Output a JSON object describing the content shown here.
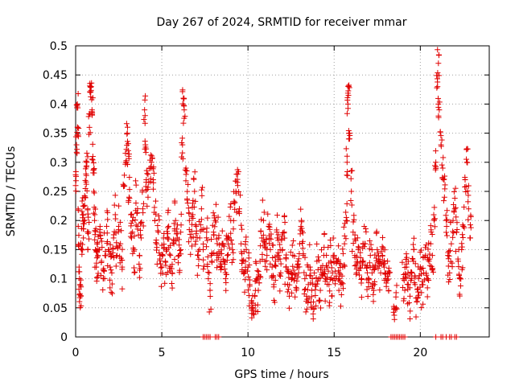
{
  "chart_data": {
    "type": "scatter",
    "title": "Day 267 of 2024, SRMTID for receiver mmar",
    "xlabel": "GPS time / hours",
    "ylabel": "SRMTID / TECUs",
    "xlim": [
      0,
      24
    ],
    "ylim": [
      0,
      0.5
    ],
    "xticks": [
      0,
      5,
      10,
      15,
      20
    ],
    "yticks": [
      0,
      0.05,
      0.1,
      0.15,
      0.2,
      0.25,
      0.3,
      0.35,
      0.4,
      0.45,
      0.5
    ],
    "xtick_labels": [
      "0",
      "5",
      "10",
      "15",
      "20"
    ],
    "ytick_labels": [
      "0",
      "0.05",
      "0.1",
      "0.15",
      "0.2",
      "0.25",
      "0.3",
      "0.35",
      "0.4",
      "0.45",
      "0.5"
    ],
    "grid": true,
    "marker": "+",
    "color": "#e00000",
    "series": [
      {
        "name": "SRMTID",
        "points": [
          [
            0.0,
            0.26
          ],
          [
            0.05,
            0.33
          ],
          [
            0.1,
            0.4
          ],
          [
            0.12,
            0.36
          ],
          [
            0.15,
            0.19
          ],
          [
            0.2,
            0.12
          ],
          [
            0.25,
            0.09
          ],
          [
            0.3,
            0.07
          ],
          [
            0.35,
            0.15
          ],
          [
            0.4,
            0.21
          ],
          [
            0.45,
            0.17
          ],
          [
            0.5,
            0.2
          ],
          [
            0.55,
            0.24
          ],
          [
            0.6,
            0.28
          ],
          [
            0.65,
            0.3
          ],
          [
            0.7,
            0.22
          ],
          [
            0.75,
            0.18
          ],
          [
            0.8,
            0.36
          ],
          [
            0.85,
            0.42
          ],
          [
            0.9,
            0.43
          ],
          [
            0.95,
            0.39
          ],
          [
            1.0,
            0.31
          ],
          [
            1.05,
            0.25
          ],
          [
            1.1,
            0.2
          ],
          [
            1.15,
            0.15
          ],
          [
            1.2,
            0.12
          ],
          [
            1.25,
            0.16
          ],
          [
            1.3,
            0.14
          ],
          [
            1.4,
            0.18
          ],
          [
            1.5,
            0.13
          ],
          [
            1.6,
            0.1
          ],
          [
            1.7,
            0.14
          ],
          [
            1.8,
            0.19
          ],
          [
            1.9,
            0.15
          ],
          [
            2.0,
            0.12
          ],
          [
            2.1,
            0.11
          ],
          [
            2.2,
            0.17
          ],
          [
            2.3,
            0.21
          ],
          [
            2.4,
            0.14
          ],
          [
            2.5,
            0.19
          ],
          [
            2.6,
            0.16
          ],
          [
            2.7,
            0.12
          ],
          [
            2.8,
            0.26
          ],
          [
            2.9,
            0.3
          ],
          [
            3.0,
            0.35
          ],
          [
            3.05,
            0.32
          ],
          [
            3.1,
            0.24
          ],
          [
            3.2,
            0.21
          ],
          [
            3.3,
            0.18
          ],
          [
            3.4,
            0.15
          ],
          [
            3.5,
            0.23
          ],
          [
            3.6,
            0.19
          ],
          [
            3.7,
            0.14
          ],
          [
            3.8,
            0.17
          ],
          [
            3.9,
            0.22
          ],
          [
            4.0,
            0.39
          ],
          [
            4.05,
            0.33
          ],
          [
            4.1,
            0.27
          ],
          [
            4.2,
            0.24
          ],
          [
            4.3,
            0.29
          ],
          [
            4.4,
            0.3
          ],
          [
            4.5,
            0.27
          ],
          [
            4.6,
            0.2
          ],
          [
            4.7,
            0.16
          ],
          [
            4.8,
            0.18
          ],
          [
            4.9,
            0.14
          ],
          [
            5.0,
            0.12
          ],
          [
            5.1,
            0.17
          ],
          [
            5.2,
            0.13
          ],
          [
            5.3,
            0.15
          ],
          [
            5.4,
            0.19
          ],
          [
            5.5,
            0.14
          ],
          [
            5.6,
            0.11
          ],
          [
            5.7,
            0.16
          ],
          [
            5.8,
            0.2
          ],
          [
            5.9,
            0.17
          ],
          [
            6.0,
            0.14
          ],
          [
            6.1,
            0.18
          ],
          [
            6.2,
            0.33
          ],
          [
            6.25,
            0.41
          ],
          [
            6.3,
            0.39
          ],
          [
            6.4,
            0.29
          ],
          [
            6.5,
            0.23
          ],
          [
            6.6,
            0.2
          ],
          [
            6.7,
            0.17
          ],
          [
            6.8,
            0.21
          ],
          [
            6.9,
            0.25
          ],
          [
            7.0,
            0.19
          ],
          [
            7.1,
            0.14
          ],
          [
            7.2,
            0.17
          ],
          [
            7.3,
            0.22
          ],
          [
            7.4,
            0.15
          ],
          [
            7.6,
            0.18
          ],
          [
            7.7,
            0.1
          ],
          [
            7.8,
            0.08
          ],
          [
            7.9,
            0.13
          ],
          [
            8.0,
            0.18
          ],
          [
            8.1,
            0.2
          ],
          [
            8.2,
            0.14
          ],
          [
            8.3,
            0.17
          ],
          [
            8.4,
            0.12
          ],
          [
            8.5,
            0.16
          ],
          [
            8.6,
            0.13
          ],
          [
            8.7,
            0.1
          ],
          [
            8.8,
            0.14
          ],
          [
            8.9,
            0.17
          ],
          [
            9.0,
            0.2
          ],
          [
            9.1,
            0.15
          ],
          [
            9.2,
            0.23
          ],
          [
            9.3,
            0.25
          ],
          [
            9.4,
            0.28
          ],
          [
            9.5,
            0.22
          ],
          [
            9.6,
            0.16
          ],
          [
            9.7,
            0.13
          ],
          [
            9.8,
            0.11
          ],
          [
            9.9,
            0.15
          ],
          [
            10.0,
            0.12
          ],
          [
            10.1,
            0.09
          ],
          [
            10.2,
            0.06
          ],
          [
            10.3,
            0.04
          ],
          [
            10.4,
            0.07
          ],
          [
            10.5,
            0.1
          ],
          [
            10.6,
            0.08
          ],
          [
            10.7,
            0.13
          ],
          [
            10.8,
            0.17
          ],
          [
            10.9,
            0.2
          ],
          [
            11.0,
            0.16
          ],
          [
            11.1,
            0.14
          ],
          [
            11.2,
            0.19
          ],
          [
            11.3,
            0.15
          ],
          [
            11.4,
            0.12
          ],
          [
            11.5,
            0.09
          ],
          [
            11.6,
            0.13
          ],
          [
            11.7,
            0.17
          ],
          [
            11.8,
            0.14
          ],
          [
            11.9,
            0.11
          ],
          [
            12.0,
            0.15
          ],
          [
            12.1,
            0.18
          ],
          [
            12.2,
            0.12
          ],
          [
            12.3,
            0.09
          ],
          [
            12.4,
            0.07
          ],
          [
            12.5,
            0.11
          ],
          [
            12.6,
            0.14
          ],
          [
            12.7,
            0.1
          ],
          [
            12.8,
            0.08
          ],
          [
            12.9,
            0.12
          ],
          [
            13.0,
            0.16
          ],
          [
            13.1,
            0.2
          ],
          [
            13.2,
            0.14
          ],
          [
            13.3,
            0.1
          ],
          [
            13.4,
            0.07
          ],
          [
            13.5,
            0.09
          ],
          [
            13.6,
            0.12
          ],
          [
            13.7,
            0.08
          ],
          [
            13.8,
            0.06
          ],
          [
            13.9,
            0.09
          ],
          [
            14.0,
            0.13
          ],
          [
            14.1,
            0.1
          ],
          [
            14.2,
            0.08
          ],
          [
            14.3,
            0.11
          ],
          [
            14.4,
            0.14
          ],
          [
            14.5,
            0.1
          ],
          [
            14.6,
            0.12
          ],
          [
            14.7,
            0.09
          ],
          [
            14.8,
            0.13
          ],
          [
            14.9,
            0.11
          ],
          [
            15.0,
            0.14
          ],
          [
            15.1,
            0.1
          ],
          [
            15.2,
            0.13
          ],
          [
            15.3,
            0.11
          ],
          [
            15.4,
            0.09
          ],
          [
            15.5,
            0.12
          ],
          [
            15.6,
            0.16
          ],
          [
            15.7,
            0.2
          ],
          [
            15.75,
            0.3
          ],
          [
            15.8,
            0.4
          ],
          [
            15.85,
            0.43
          ],
          [
            15.9,
            0.35
          ],
          [
            16.0,
            0.25
          ],
          [
            16.1,
            0.18
          ],
          [
            16.2,
            0.14
          ],
          [
            16.3,
            0.11
          ],
          [
            16.4,
            0.15
          ],
          [
            16.5,
            0.12
          ],
          [
            16.6,
            0.1
          ],
          [
            16.7,
            0.13
          ],
          [
            16.8,
            0.16
          ],
          [
            16.9,
            0.12
          ],
          [
            17.0,
            0.1
          ],
          [
            17.1,
            0.14
          ],
          [
            17.2,
            0.11
          ],
          [
            17.3,
            0.08
          ],
          [
            17.4,
            0.12
          ],
          [
            17.5,
            0.15
          ],
          [
            17.6,
            0.13
          ],
          [
            17.7,
            0.11
          ],
          [
            17.8,
            0.14
          ],
          [
            17.9,
            0.12
          ],
          [
            18.0,
            0.1
          ],
          [
            18.1,
            0.13
          ],
          [
            18.2,
            0.11
          ],
          [
            18.5,
            0.03
          ],
          [
            18.6,
            0.05
          ],
          [
            19.0,
            0.1
          ],
          [
            19.1,
            0.08
          ],
          [
            19.2,
            0.12
          ],
          [
            19.3,
            0.09
          ],
          [
            19.4,
            0.07
          ],
          [
            19.5,
            0.1
          ],
          [
            19.6,
            0.13
          ],
          [
            19.7,
            0.09
          ],
          [
            19.8,
            0.06
          ],
          [
            19.9,
            0.1
          ],
          [
            20.0,
            0.12
          ],
          [
            20.1,
            0.09
          ],
          [
            20.2,
            0.11
          ],
          [
            20.3,
            0.14
          ],
          [
            20.4,
            0.1
          ],
          [
            20.5,
            0.13
          ],
          [
            20.6,
            0.16
          ],
          [
            20.7,
            0.14
          ],
          [
            20.8,
            0.2
          ],
          [
            20.9,
            0.3
          ],
          [
            21.0,
            0.43
          ],
          [
            21.05,
            0.47
          ],
          [
            21.1,
            0.39
          ],
          [
            21.2,
            0.33
          ],
          [
            21.3,
            0.29
          ],
          [
            21.4,
            0.24
          ],
          [
            21.5,
            0.2
          ],
          [
            21.6,
            0.14
          ],
          [
            21.7,
            0.11
          ],
          [
            21.8,
            0.16
          ],
          [
            21.9,
            0.2
          ],
          [
            22.0,
            0.22
          ],
          [
            22.1,
            0.18
          ],
          [
            22.2,
            0.13
          ],
          [
            22.3,
            0.1
          ],
          [
            22.4,
            0.15
          ],
          [
            22.5,
            0.19
          ],
          [
            22.6,
            0.27
          ],
          [
            22.7,
            0.3
          ],
          [
            22.8,
            0.22
          ],
          [
            22.9,
            0.17
          ]
        ]
      }
    ],
    "zero_points_x": [
      7.4,
      7.5,
      7.6,
      7.7,
      7.8,
      8.1,
      8.2,
      8.3,
      18.3,
      18.4,
      18.5,
      18.6,
      18.7,
      18.8,
      18.9,
      19.0,
      19.1,
      20.9,
      21.2,
      21.3,
      21.5,
      21.7,
      21.8,
      22.0,
      22.1
    ]
  }
}
